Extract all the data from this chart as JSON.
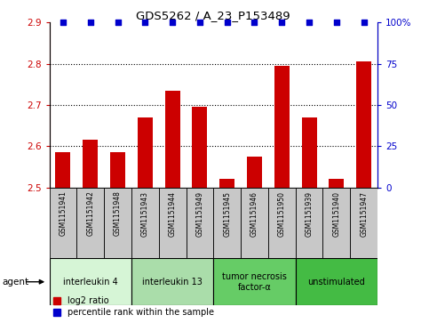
{
  "title": "GDS5262 / A_23_P153489",
  "samples": [
    "GSM1151941",
    "GSM1151942",
    "GSM1151948",
    "GSM1151943",
    "GSM1151944",
    "GSM1151949",
    "GSM1151945",
    "GSM1151946",
    "GSM1151950",
    "GSM1151939",
    "GSM1151940",
    "GSM1151947"
  ],
  "log2_values": [
    2.585,
    2.615,
    2.585,
    2.67,
    2.735,
    2.695,
    2.52,
    2.575,
    2.795,
    2.67,
    2.52,
    2.805
  ],
  "percentile_values": [
    100,
    100,
    100,
    100,
    100,
    100,
    100,
    100,
    100,
    100,
    100,
    100
  ],
  "bar_color": "#cc0000",
  "dot_color": "#0000cc",
  "ylim_left": [
    2.5,
    2.9
  ],
  "ylim_right": [
    0,
    100
  ],
  "yticks_left": [
    2.5,
    2.6,
    2.7,
    2.8,
    2.9
  ],
  "yticks_right": [
    0,
    25,
    50,
    75,
    100
  ],
  "ytick_labels_right": [
    "0",
    "25",
    "50",
    "75",
    "100%"
  ],
  "dotted_lines": [
    2.6,
    2.7,
    2.8
  ],
  "groups": [
    {
      "label": "interleukin 4",
      "start": 0,
      "end": 3,
      "color": "#d6f5d6"
    },
    {
      "label": "interleukin 13",
      "start": 3,
      "end": 6,
      "color": "#aaddaa"
    },
    {
      "label": "tumor necrosis\nfactor-α",
      "start": 6,
      "end": 9,
      "color": "#66cc66"
    },
    {
      "label": "unstimulated",
      "start": 9,
      "end": 12,
      "color": "#44bb44"
    }
  ],
  "legend_items": [
    {
      "color": "#cc0000",
      "label": "log2 ratio"
    },
    {
      "color": "#0000cc",
      "label": "percentile rank within the sample"
    }
  ],
  "bar_width": 0.55,
  "sample_box_color": "#c8c8c8",
  "agent_label": "agent"
}
